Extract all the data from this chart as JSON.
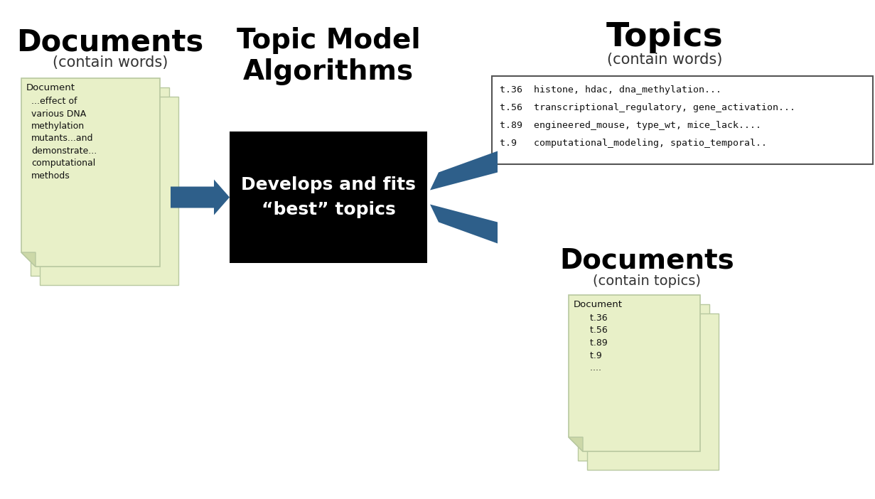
{
  "bg_color": "#ffffff",
  "doc_left_title": "Documents",
  "doc_left_subtitle": "(contain words)",
  "doc_left_text_line0": "Document",
  "doc_left_text_body": "...effect of\nvarious DNA\nmethylation\nmutants...and\ndemonstrate...\ncomputational\nmethods",
  "center_title_line1": "Topic Model",
  "center_title_line2": "Algorithms",
  "center_box_text": "Develops and fits\n“best” topics",
  "center_box_bg": "#000000",
  "center_box_fg": "#ffffff",
  "topics_title": "Topics",
  "topics_subtitle": "(contain words)",
  "topics_lines": [
    "t.36  histone, hdac, dna_methylation...",
    "t.56  transcriptional_regulatory, gene_activation...",
    "t.89  engineered_mouse, type_wt, mice_lack....",
    "t.9   computational_modeling, spatio_temporal.."
  ],
  "doc_right_title": "Documents",
  "doc_right_subtitle": "(contain topics)",
  "doc_right_text_line0": "Document",
  "doc_right_text_body": "    t.36\n    t.56\n    t.89\n    t.9\n    ....",
  "arrow_color": "#2e5f8a",
  "paper_color": "#e8f0c8",
  "paper_border": "#b8c8a0",
  "paper_shadow": "#999999",
  "paper_fold_color": "#ccd8a8"
}
